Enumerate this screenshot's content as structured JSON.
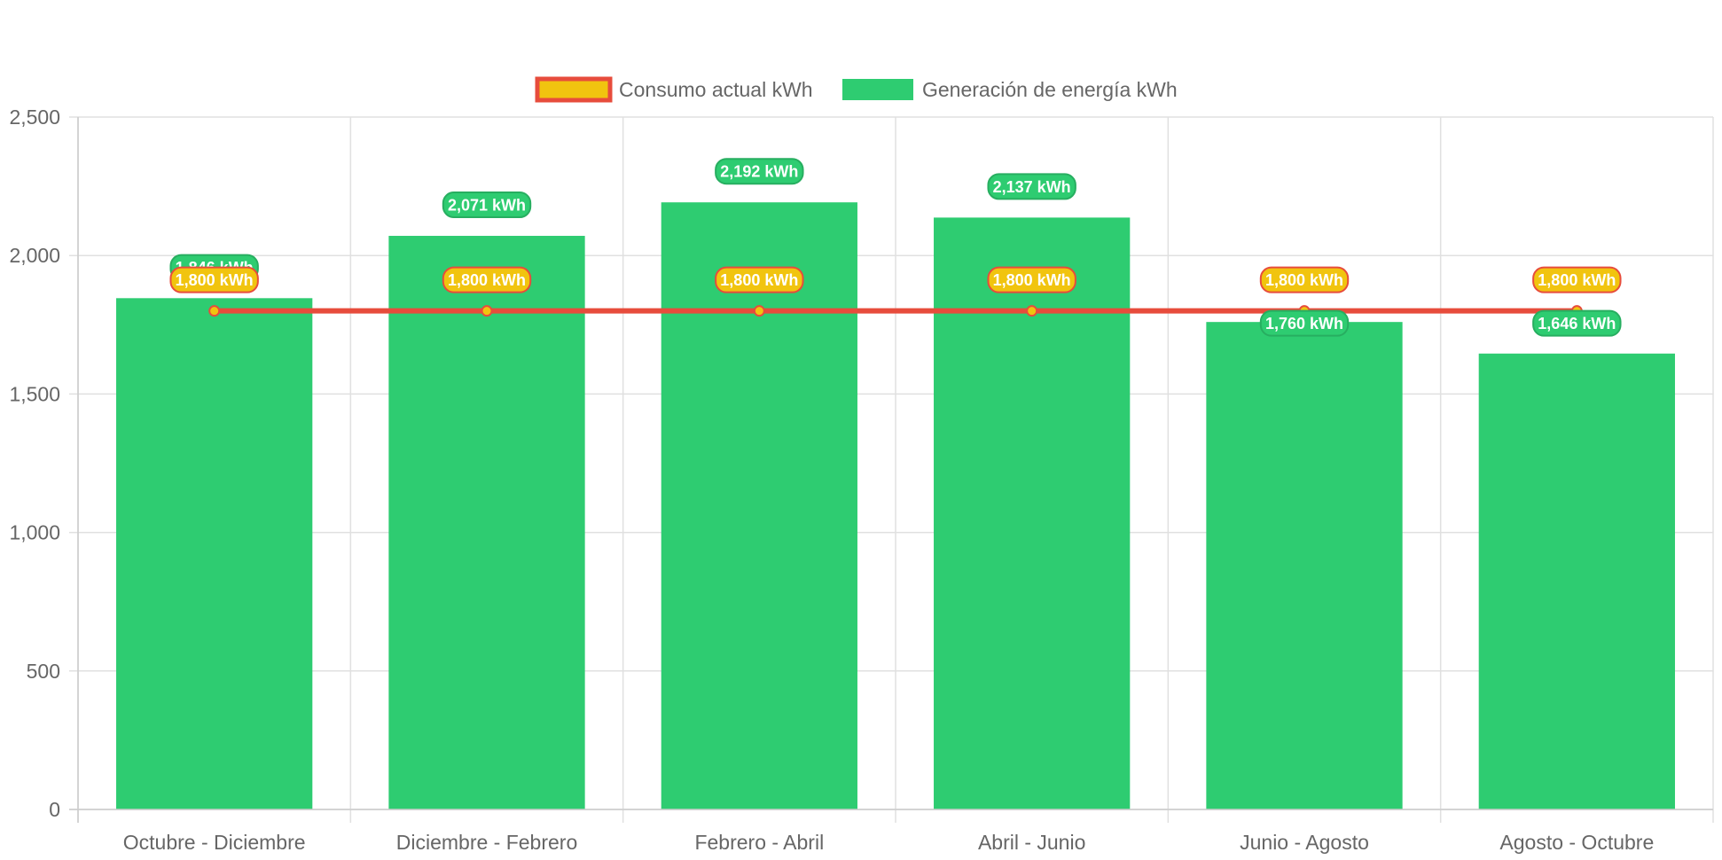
{
  "chart_data": {
    "type": "bar",
    "title": "",
    "xlabel": "",
    "ylabel": "",
    "categories": [
      "Octubre - Diciembre",
      "Diciembre - Febrero",
      "Febrero - Abril",
      "Abril - Junio",
      "Junio - Agosto",
      "Agosto - Octubre"
    ],
    "series": [
      {
        "name": "Consumo actual kWh",
        "type": "line",
        "values": [
          1800,
          1800,
          1800,
          1800,
          1800,
          1800
        ],
        "data_labels": [
          "1,800 kWh",
          "1,800 kWh",
          "1,800 kWh",
          "1,800 kWh",
          "1,800 kWh",
          "1,800 kWh"
        ],
        "color": "#e74c3c",
        "fill": "#f1c40f"
      },
      {
        "name": "Generación de energía kWh",
        "type": "bar",
        "values": [
          1846,
          2071,
          2192,
          2137,
          1760,
          1646
        ],
        "data_labels": [
          "1,846 kWh",
          "2,071 kWh",
          "2,192 kWh",
          "2,137 kWh",
          "1,760 kWh",
          "1,646 kWh"
        ],
        "color": "#2ecc71"
      }
    ],
    "ylim": [
      0,
      2500
    ],
    "yticks": [
      0,
      500,
      1000,
      1500,
      2000,
      2500
    ],
    "ytick_labels": [
      "0",
      "500",
      "1,000",
      "1,500",
      "2,000",
      "2,500"
    ],
    "grid": true,
    "legend_position": "top",
    "colors": {
      "grid": "#e0e0e0",
      "tick_text": "#666666",
      "label_text": "#ffffff"
    }
  }
}
